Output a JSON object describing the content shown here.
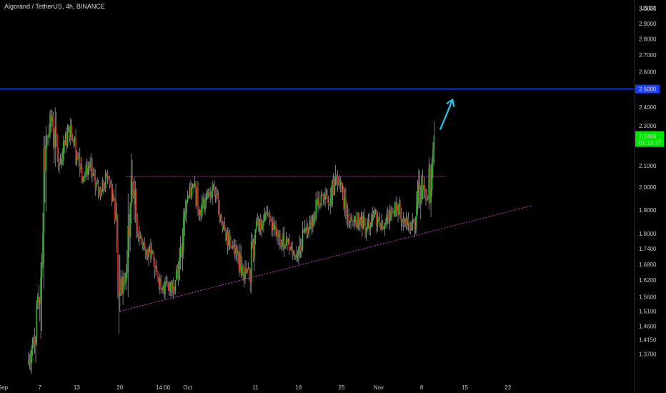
{
  "header": {
    "title": "Algorand / TetherUS, 4h, BINANCE",
    "currency": "USDT"
  },
  "colors": {
    "background": "#000000",
    "up_candle": "#22c322",
    "down_candle": "#c81e1e",
    "wick": "#9a9a9a",
    "resistance_line": "#1a3cff",
    "pattern_lines": "#d040d0",
    "arrow": "#1ec8e6",
    "price_badge": "#00e600"
  },
  "chart_data": {
    "type": "line",
    "title": "Algorand / TetherUS, 4h, BINANCE",
    "xlabel": "",
    "ylabel": "",
    "grid": false,
    "x_ticks": [
      "Sep",
      "7",
      "13",
      "20",
      "14:00",
      "Oct",
      "11",
      "18",
      "25",
      "Nov",
      "8",
      "15",
      "22"
    ],
    "y_ticks": [
      "3.0000",
      "2.9000",
      "2.8000",
      "2.7000",
      "2.6000",
      "2.5000",
      "2.4000",
      "2.3000",
      "2.2466",
      "2.1000",
      "2.0000",
      "1.9000",
      "1.8000",
      "1.7400",
      "1.6800",
      "1.6200",
      "1.5600",
      "1.5100",
      "1.4600",
      "1.4150",
      "1.3700"
    ],
    "y_scale": "log",
    "ylim": [
      1.3,
      3.02
    ],
    "xlim": [
      "Sep 1",
      "Nov 27"
    ],
    "series": [
      {
        "type": "candlestick",
        "x": [
          "Sep 5",
          "Sep 6",
          "Sep 7",
          "Sep 8",
          "Sep 9",
          "Sep 10",
          "Sep 11",
          "Sep 12",
          "Sep 13",
          "Sep 14",
          "Sep 15",
          "Sep 16",
          "Sep 17",
          "Sep 18",
          "Sep 19",
          "Sep 20",
          "Sep 21",
          "Sep 22",
          "Sep 23",
          "Sep 24",
          "Sep 25",
          "Sep 26",
          "Sep 27",
          "Sep 28",
          "Sep 29",
          "Sep 30",
          "Oct 1",
          "Oct 2",
          "Oct 3",
          "Oct 4",
          "Oct 5",
          "Oct 6",
          "Oct 7",
          "Oct 8",
          "Oct 9",
          "Oct 10",
          "Oct 11",
          "Oct 12",
          "Oct 13",
          "Oct 14",
          "Oct 15",
          "Oct 16",
          "Oct 17",
          "Oct 18",
          "Oct 19",
          "Oct 20",
          "Oct 21",
          "Oct 22",
          "Oct 23",
          "Oct 24",
          "Oct 25",
          "Oct 26",
          "Oct 27",
          "Oct 28",
          "Oct 29",
          "Oct 30",
          "Oct 31",
          "Nov 1",
          "Nov 2",
          "Nov 3",
          "Nov 4",
          "Nov 5",
          "Nov 6",
          "Nov 7",
          "Nov 8",
          "Nov 9",
          "Nov 10"
        ],
        "close": [
          1.34,
          1.42,
          1.55,
          2.2,
          2.35,
          2.1,
          2.2,
          2.3,
          2.15,
          2.05,
          2.1,
          2.0,
          1.98,
          2.05,
          1.95,
          1.58,
          1.65,
          2.02,
          1.8,
          1.75,
          1.72,
          1.65,
          1.6,
          1.58,
          1.62,
          1.72,
          1.95,
          2.0,
          1.9,
          1.95,
          2.0,
          1.92,
          1.82,
          1.75,
          1.72,
          1.65,
          1.64,
          1.82,
          1.85,
          1.88,
          1.82,
          1.76,
          1.78,
          1.72,
          1.74,
          1.82,
          1.85,
          1.92,
          1.95,
          1.92,
          2.05,
          1.98,
          1.88,
          1.85,
          1.86,
          1.82,
          1.88,
          1.86,
          1.84,
          1.88,
          1.92,
          1.85,
          1.83,
          1.85,
          2.05,
          1.95,
          2.25
        ]
      }
    ],
    "annotations": [
      {
        "type": "horizontal_line",
        "label": "2.5000",
        "y": 2.5
      },
      {
        "type": "horizontal_dotted_line",
        "y": 2.05,
        "x_start": "Sep 21",
        "x_end": "Nov 12"
      },
      {
        "type": "ascending_dotted_line",
        "x_start": "Sep 20",
        "y_start": 1.51,
        "x_end": "Nov 26",
        "y_end": 1.92
      },
      {
        "type": "arrow",
        "direction": "up-right",
        "from": {
          "x": "Nov 11",
          "y": 2.28
        },
        "to": {
          "x": "Nov 13",
          "y": 2.44
        }
      },
      {
        "type": "price_badge",
        "price": "2.2466",
        "countdown": "01:19:37"
      }
    ]
  }
}
